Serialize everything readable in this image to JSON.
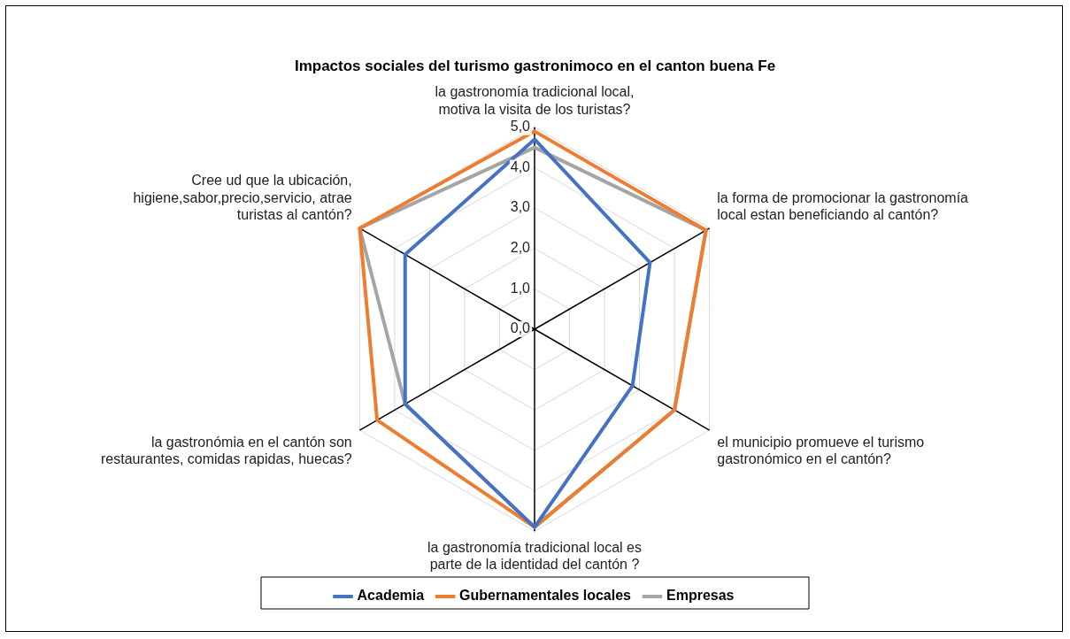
{
  "chart_data": {
    "type": "radar",
    "title": "Impactos sociales del turismo gastronimoco en el canton buena Fe",
    "categories": [
      "la gastronomía tradicional local, motiva la visita de los turistas?",
      "la forma de promocionar la gastronomía local estan beneficiando al cantón?",
      "el municipio promueve el turismo gastronómico en el cantón?",
      "la gastronomía tradicional local es parte de la identidad del cantón ?",
      "la gastronómia en el cantón son restaurantes, comidas rapidas, huecas?",
      "Cree ud que la ubicación, higiene,sabor,precio,servicio, atrae turistas al cantón?"
    ],
    "series": [
      {
        "name": "Academia",
        "color": "#4472c4",
        "values": [
          4.7,
          3.3,
          2.8,
          4.9,
          3.7,
          3.7
        ]
      },
      {
        "name": "Gubernamentales locales",
        "color": "#ed7d31",
        "values": [
          4.9,
          4.9,
          4.0,
          4.9,
          4.5,
          5.0
        ]
      },
      {
        "name": "Empresas",
        "color": "#a5a5a5",
        "values": [
          4.5,
          4.9,
          4.0,
          4.9,
          3.7,
          5.0
        ]
      }
    ],
    "ylim": [
      0,
      5
    ],
    "yticks": [
      {
        "value": 0,
        "label": "0,0"
      },
      {
        "value": 1,
        "label": "1,0"
      },
      {
        "value": 2,
        "label": "2,0"
      },
      {
        "value": 3,
        "label": "3,0"
      },
      {
        "value": 4,
        "label": "4,0"
      },
      {
        "value": 5,
        "label": "5,0"
      }
    ],
    "grid": true,
    "legend": "bottom",
    "marker": "none",
    "line_style": "solid"
  }
}
